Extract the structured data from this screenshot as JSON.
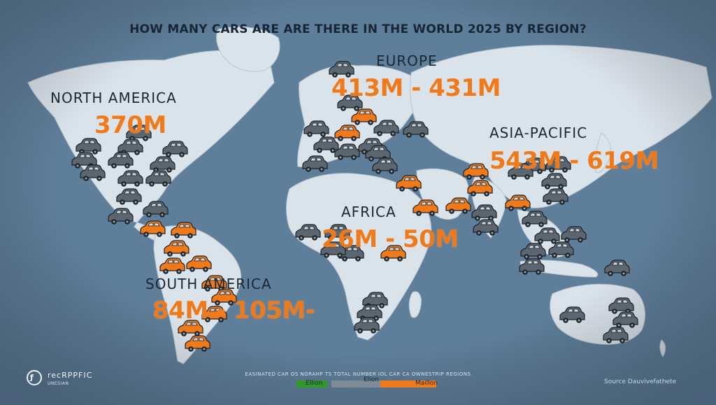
{
  "title": "HOW MANY CARS ARE ARE THERE IN THE WORLD 2025 BY REGION?",
  "regions": [
    {
      "name": "NORTH AMERICA",
      "value": "370M"
    },
    {
      "name": "EUROPE",
      "value": "413M - 431M"
    },
    {
      "name": "ASIA-PACIFIC",
      "value": "543M - 619M"
    },
    {
      "name": "AFRICA",
      "value": "26M - 50M"
    },
    {
      "name": "SOUTH AMERICA",
      "value": "84M - 105M-"
    }
  ],
  "footer_note": "EASINATED CAR OS NORAHP TS TOTAL NUMBER IOL CAR CA OWNESTRIP REGIONS",
  "legend": [
    {
      "label": "Ellion",
      "color": "#2f9a2a"
    },
    {
      "label": "Elion",
      "color": "#7d8c98"
    },
    {
      "label": "Maillon",
      "color": "#f07a1a"
    }
  ],
  "logo": {
    "name": "recRPPFIC",
    "sub": "UNESIAN"
  },
  "source": "Source Dauvivefathete",
  "colors": {
    "ocean": "#5f7e99",
    "land": "#dbe3ea",
    "car_gray": "#5c6670",
    "car_orange": "#f07a1a",
    "value_orange": "#f07a1a"
  }
}
